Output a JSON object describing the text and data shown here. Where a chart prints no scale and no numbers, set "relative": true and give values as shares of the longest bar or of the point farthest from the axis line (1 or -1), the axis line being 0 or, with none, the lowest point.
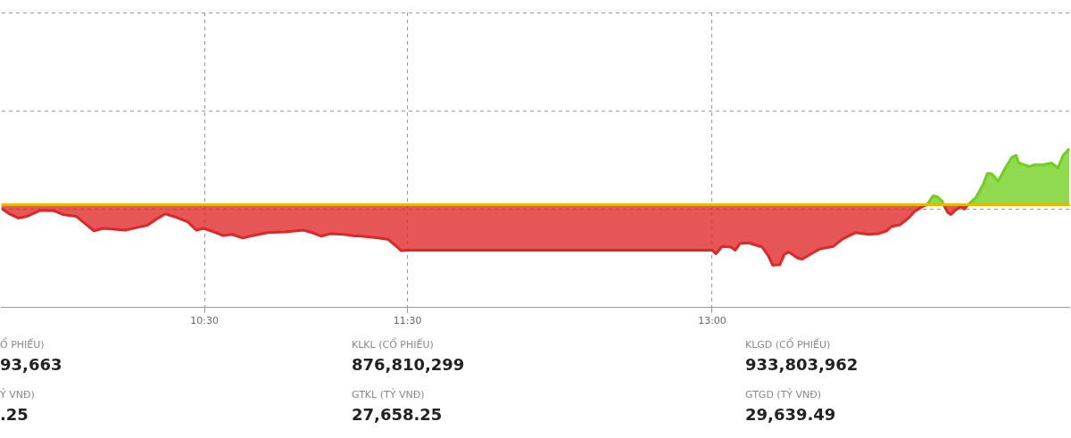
{
  "chart_data": {
    "type": "area",
    "relative": true,
    "xlim": [
      9.5,
      14.76
    ],
    "xticks": [
      {
        "value": 10.5,
        "label": "10:30"
      },
      {
        "value": 11.5,
        "label": "11:30"
      },
      {
        "value": 13,
        "label": "13:00"
      }
    ],
    "grid": true,
    "legend": false,
    "marker": "none",
    "line_style": "solid",
    "ref_lines": [
      {
        "axis": "y",
        "value": 0,
        "color": "#e6b800"
      }
    ],
    "series": [
      {
        "color": "#e02626",
        "x": [
          9.5,
          9.539,
          9.583,
          9.627,
          9.693,
          9.759,
          9.803,
          9.868,
          9.912,
          9.956,
          10.0,
          10.044,
          10.11,
          10.175,
          10.219,
          10.263,
          10.307,
          10.364,
          10.417,
          10.46,
          10.496,
          10.548,
          10.592,
          10.636,
          10.689,
          10.724,
          10.811,
          10.899,
          10.987,
          11.031,
          11.075,
          11.118,
          11.184,
          11.228,
          11.272,
          11.338,
          11.403,
          11.439,
          11.469,
          11.5,
          11.535,
          13.0,
          13.018,
          13.048,
          13.092,
          13.114,
          13.136,
          13.18,
          13.246,
          13.276,
          13.298,
          13.333,
          13.355,
          13.377,
          13.421,
          13.443,
          13.487,
          13.531,
          13.596,
          13.64,
          13.706,
          13.772,
          13.816,
          13.86,
          13.882,
          13.925,
          13.969,
          14.0,
          14.035,
          14.057
        ],
        "values": [
          -0.06,
          -0.15,
          -0.22,
          -0.19,
          -0.09,
          -0.1,
          -0.16,
          -0.19,
          -0.31,
          -0.43,
          -0.39,
          -0.4,
          -0.42,
          -0.37,
          -0.34,
          -0.24,
          -0.15,
          -0.21,
          -0.28,
          -0.42,
          -0.39,
          -0.45,
          -0.51,
          -0.49,
          -0.55,
          -0.52,
          -0.46,
          -0.45,
          -0.42,
          -0.46,
          -0.52,
          -0.48,
          -0.49,
          -0.51,
          -0.52,
          -0.54,
          -0.57,
          -0.67,
          -0.76,
          -0.75,
          -0.75,
          -0.75,
          -0.81,
          -0.69,
          -0.7,
          -0.75,
          -0.64,
          -0.63,
          -0.7,
          -0.84,
          -1,
          -0.99,
          -0.82,
          -0.78,
          -0.88,
          -0.9,
          -0.81,
          -0.73,
          -0.69,
          -0.57,
          -0.46,
          -0.49,
          -0.48,
          -0.43,
          -0.36,
          -0.33,
          -0.21,
          -0.1,
          -0.03,
          0
        ]
      },
      {
        "color": "#6fcf1c",
        "x": [
          14.057,
          14.088,
          14.11,
          14.132,
          14.14
        ],
        "values": [
          0,
          0.15,
          0.13,
          0.06,
          0
        ]
      },
      {
        "color": "#e02626",
        "x": [
          14.14,
          14.158,
          14.175,
          14.197,
          14.224,
          14.241,
          14.259
        ],
        "values": [
          0,
          -0.12,
          -0.16,
          -0.09,
          -0.03,
          -0.07,
          0
        ]
      },
      {
        "color": "#6fcf1c",
        "x": [
          14.259,
          14.298,
          14.333,
          14.355,
          14.377,
          14.408,
          14.443,
          14.474,
          14.496,
          14.509,
          14.54,
          14.561,
          14.583,
          14.627,
          14.671,
          14.702,
          14.728,
          14.759
        ],
        "values": [
          0,
          0.12,
          0.33,
          0.52,
          0.51,
          0.39,
          0.61,
          0.78,
          0.82,
          0.69,
          0.66,
          0.63,
          0.66,
          0.66,
          0.69,
          0.61,
          0.82,
          0.93
        ]
      }
    ],
    "annotations": [
      "Ổ PHIẾU)",
      "93,663",
      "Ỷ VNĐ)",
      ".25",
      "KLKL (CỔ PHIẾU)",
      "876,810,299",
      "GTKL (TỶ VNĐ)",
      "27,658.25",
      "KLGD (CỔ PHIẾU)",
      "933,803,962",
      "GTGD (TỶ VNĐ)",
      "29,639.49"
    ]
  }
}
